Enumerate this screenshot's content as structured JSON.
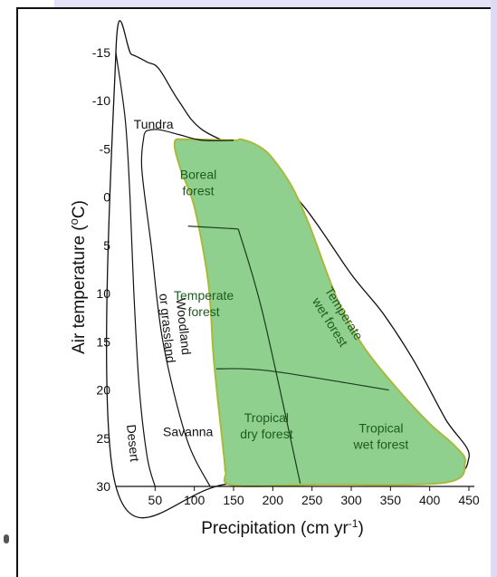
{
  "chart_data": {
    "type": "area",
    "title": "",
    "xlabel": "Precipitation (cm yr-1)",
    "xlabel_parts": {
      "main": "Precipitation (cm yr",
      "sup": "-1",
      "close": ")"
    },
    "ylabel": "Air temperature (oC)",
    "ylabel_parts": {
      "pre": "Air temperature  (",
      "sup": "o",
      "post": "C)"
    },
    "x_ticks": [
      "50",
      "100",
      "150",
      "200",
      "250",
      "300",
      "350",
      "400",
      "450"
    ],
    "y_ticks": [
      "-15",
      "-10",
      "-5",
      "0",
      "5",
      "10",
      "15",
      "20",
      "25",
      "30"
    ],
    "xlim": [
      0,
      450
    ],
    "ylim": [
      -15,
      30
    ],
    "y_inverted": true,
    "regions": [
      {
        "name": "Tundra",
        "label": "Tundra",
        "label_at": [
          48,
          -7.6
        ],
        "rotate": 0,
        "color": "#111111"
      },
      {
        "name": "Boreal forest",
        "label": [
          "Boreal",
          "forest"
        ],
        "label_at": [
          105,
          -1.5
        ],
        "rotate": 0,
        "color": "#1f5a1f"
      },
      {
        "name": "Temperate forest",
        "label": [
          "Temperate",
          "forest"
        ],
        "label_at": [
          112,
          11
        ],
        "rotate": 0,
        "color": "#1f5a1f"
      },
      {
        "name": "Temperate wet forest",
        "label": [
          "Temperate",
          "wet forest"
        ],
        "label_at": [
          282,
          12.5
        ],
        "rotate": 58,
        "color": "#1f5a1f"
      },
      {
        "name": "Woodland or grassland",
        "label": [
          "Woodland",
          "or grassland"
        ],
        "label_at": [
          76,
          13.5
        ],
        "rotate": 84,
        "color": "#111111"
      },
      {
        "name": "Desert",
        "label": "Desert",
        "label_at": [
          22,
          25.5
        ],
        "rotate": 84,
        "color": "#111111"
      },
      {
        "name": "Savanna",
        "label": "Savanna",
        "label_at": [
          92,
          24.3
        ],
        "rotate": 0,
        "color": "#111111"
      },
      {
        "name": "Tropical dry forest",
        "label": [
          "Tropical",
          "dry forest"
        ],
        "label_at": [
          192,
          23.7
        ],
        "rotate": 0,
        "color": "#1f5a1f"
      },
      {
        "name": "Tropical wet forest",
        "label": [
          "Tropical",
          "wet forest"
        ],
        "label_at": [
          338,
          24.8
        ],
        "rotate": 0,
        "color": "#1f5a1f"
      }
    ],
    "outer_boundary": [
      [
        0,
        -15
      ],
      [
        20,
        -14.8
      ],
      [
        40,
        -14
      ],
      [
        55,
        -13.3
      ],
      [
        80,
        -10
      ],
      [
        110,
        -7
      ],
      [
        180,
        -4
      ],
      [
        240,
        1
      ],
      [
        300,
        8
      ],
      [
        340,
        12
      ],
      [
        380,
        17
      ],
      [
        420,
        23
      ],
      [
        450,
        27
      ],
      [
        400,
        29.4
      ],
      [
        150,
        29.7
      ],
      [
        0,
        30
      ]
    ],
    "tundra_lower_boundary": [
      [
        36,
        -6.5
      ],
      [
        40,
        -6.9
      ],
      [
        55,
        -7
      ],
      [
        80,
        -6.5
      ],
      [
        110,
        -5.9
      ],
      [
        150,
        -5.9
      ]
    ],
    "desert_boundary": [
      [
        0,
        -15
      ],
      [
        12,
        -8
      ],
      [
        18,
        0
      ],
      [
        23,
        10
      ],
      [
        30,
        20
      ],
      [
        40,
        27
      ],
      [
        50,
        30
      ]
    ],
    "woodland_boundary": [
      [
        36,
        -6.5
      ],
      [
        33,
        -3
      ],
      [
        45,
        5
      ],
      [
        60,
        15
      ],
      [
        90,
        25
      ],
      [
        120,
        30
      ]
    ],
    "forest_outline": [
      [
        150,
        -5.9
      ],
      [
        160,
        -6
      ],
      [
        182,
        -5.3
      ],
      [
        200,
        -4
      ],
      [
        225,
        -1
      ],
      [
        247,
        3
      ],
      [
        272,
        8.5
      ],
      [
        290,
        12
      ],
      [
        320,
        16
      ],
      [
        360,
        20
      ],
      [
        400,
        23.5
      ],
      [
        432,
        25.8
      ],
      [
        445,
        27.5
      ],
      [
        420,
        29.6
      ],
      [
        260,
        29.8
      ],
      [
        150,
        29.9
      ],
      [
        140,
        28.5
      ],
      [
        138,
        27
      ],
      [
        125,
        17
      ],
      [
        118,
        9
      ],
      [
        100,
        1
      ],
      [
        82,
        -3
      ],
      [
        75,
        -5.7
      ],
      [
        90,
        -6
      ]
    ],
    "forest_internal_lines": [
      [
        [
          92,
          3
        ],
        [
          156,
          3.3
        ]
      ],
      [
        [
          156,
          3.3
        ],
        [
          187,
          12
        ],
        [
          235,
          29.7
        ]
      ],
      [
        [
          128,
          17.8
        ],
        [
          195,
          18
        ],
        [
          348,
          20
        ]
      ]
    ],
    "colors": {
      "forest_fill": "#8fd08f",
      "forest_stroke": "#a9b93a",
      "lines": "#111111"
    }
  }
}
